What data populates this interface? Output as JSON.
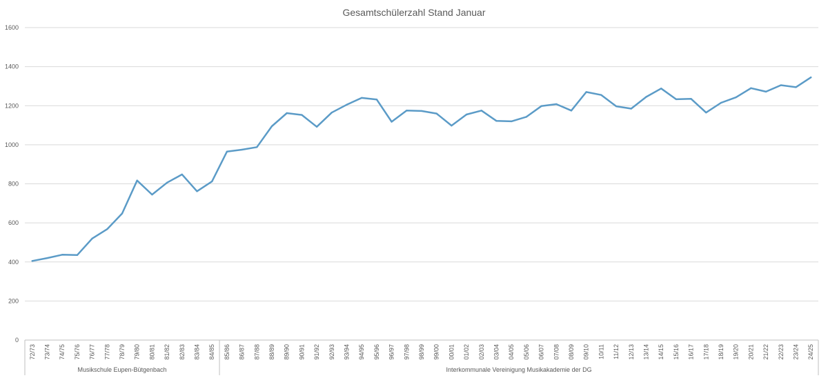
{
  "chart_data": {
    "type": "line",
    "title": "Gesamtschülerzahl Stand Januar",
    "xlabel": "",
    "ylabel": "",
    "ylim": [
      0,
      1600
    ],
    "yticks": [
      0,
      200,
      400,
      600,
      800,
      1000,
      1200,
      1400,
      1600
    ],
    "grid": true,
    "legend": "none",
    "series_color": "#5b9bc7",
    "categories": [
      "72/73",
      "73/74",
      "74/75",
      "75/76",
      "76/77",
      "77/78",
      "78/79",
      "79/80",
      "80/81",
      "81/82",
      "82/83",
      "83/84",
      "84/85",
      "85/86",
      "86/87",
      "87/88",
      "88/89",
      "89/90",
      "90/91",
      "91/92",
      "92/93",
      "93/94",
      "94/95",
      "95/96",
      "96/97",
      "97/98",
      "98/99",
      "99/00",
      "00/01",
      "01/02",
      "02/03",
      "03/04",
      "04/05",
      "05/06",
      "06/07",
      "07/08",
      "08/09",
      "09/10",
      "10/11",
      "11/12",
      "12/13",
      "13/14",
      "14/15",
      "15/16",
      "16/17",
      "17/18",
      "18/19",
      "19/20",
      "20/21",
      "21/22",
      "22/23",
      "23/24",
      "24/25"
    ],
    "series": [
      {
        "values": [
          405,
          420,
          437,
          435,
          520,
          568,
          648,
          817,
          745,
          806,
          848,
          762,
          812,
          965,
          975,
          988,
          1095,
          1162,
          1153,
          1092,
          1165,
          1205,
          1240,
          1232,
          1118,
          1175,
          1173,
          1160,
          1098,
          1155,
          1175,
          1122,
          1120,
          1143,
          1198,
          1208,
          1175,
          1270,
          1255,
          1197,
          1185,
          1245,
          1288,
          1233,
          1235,
          1165,
          1215,
          1243,
          1290,
          1272,
          1305,
          1295,
          1345
        ]
      }
    ],
    "groups": [
      {
        "label": "Musikschule Eupen-Bütgenbach",
        "start": 0,
        "end": 12
      },
      {
        "label": "Interkommunale Vereinigung Musikakademie der DG",
        "start": 13,
        "end": 52
      }
    ]
  }
}
